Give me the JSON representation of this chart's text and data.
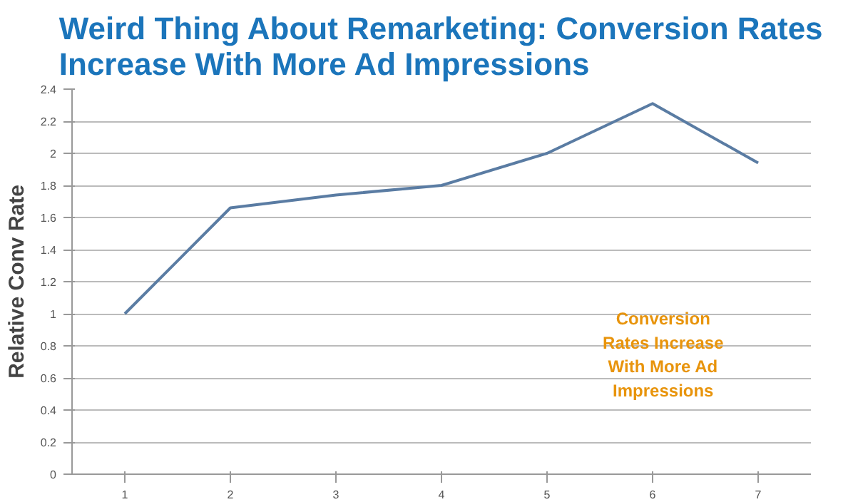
{
  "chart_data": {
    "type": "line",
    "title": "Weird Thing About Remarketing: Conversion Rates\nIncrease With More Ad Impressions",
    "ylabel": "Relative Conv Rate",
    "categories": [
      "1",
      "2",
      "3",
      "4",
      "5",
      "6",
      "7"
    ],
    "series": [
      {
        "color": "#5a7ca3",
        "values": [
          1.0,
          1.66,
          1.74,
          1.8,
          2.0,
          2.31,
          1.94
        ]
      }
    ],
    "ylim": [
      0,
      2.4
    ],
    "yticks": [
      0,
      {
        "value": 0.2,
        "label": "0.2"
      },
      {
        "value": 0.4,
        "label": "0.4"
      },
      {
        "value": 0.6,
        "label": "0.6"
      },
      {
        "value": 0.8,
        "label": "0.8"
      },
      1,
      {
        "value": 1.2,
        "label": "1.2"
      },
      {
        "value": 1.4,
        "label": "1.4"
      },
      {
        "value": 1.6,
        "label": "1.6"
      },
      {
        "value": 1.8,
        "label": "1.8"
      },
      2,
      {
        "value": 2.2,
        "label": "2.2"
      },
      {
        "value": 2.4,
        "label": "2.4"
      }
    ],
    "grid": "y",
    "marker": "none",
    "line_style": "solid",
    "annotations": [
      "Conversion\nRates Increase\nWith More Ad\nImpressions"
    ]
  }
}
